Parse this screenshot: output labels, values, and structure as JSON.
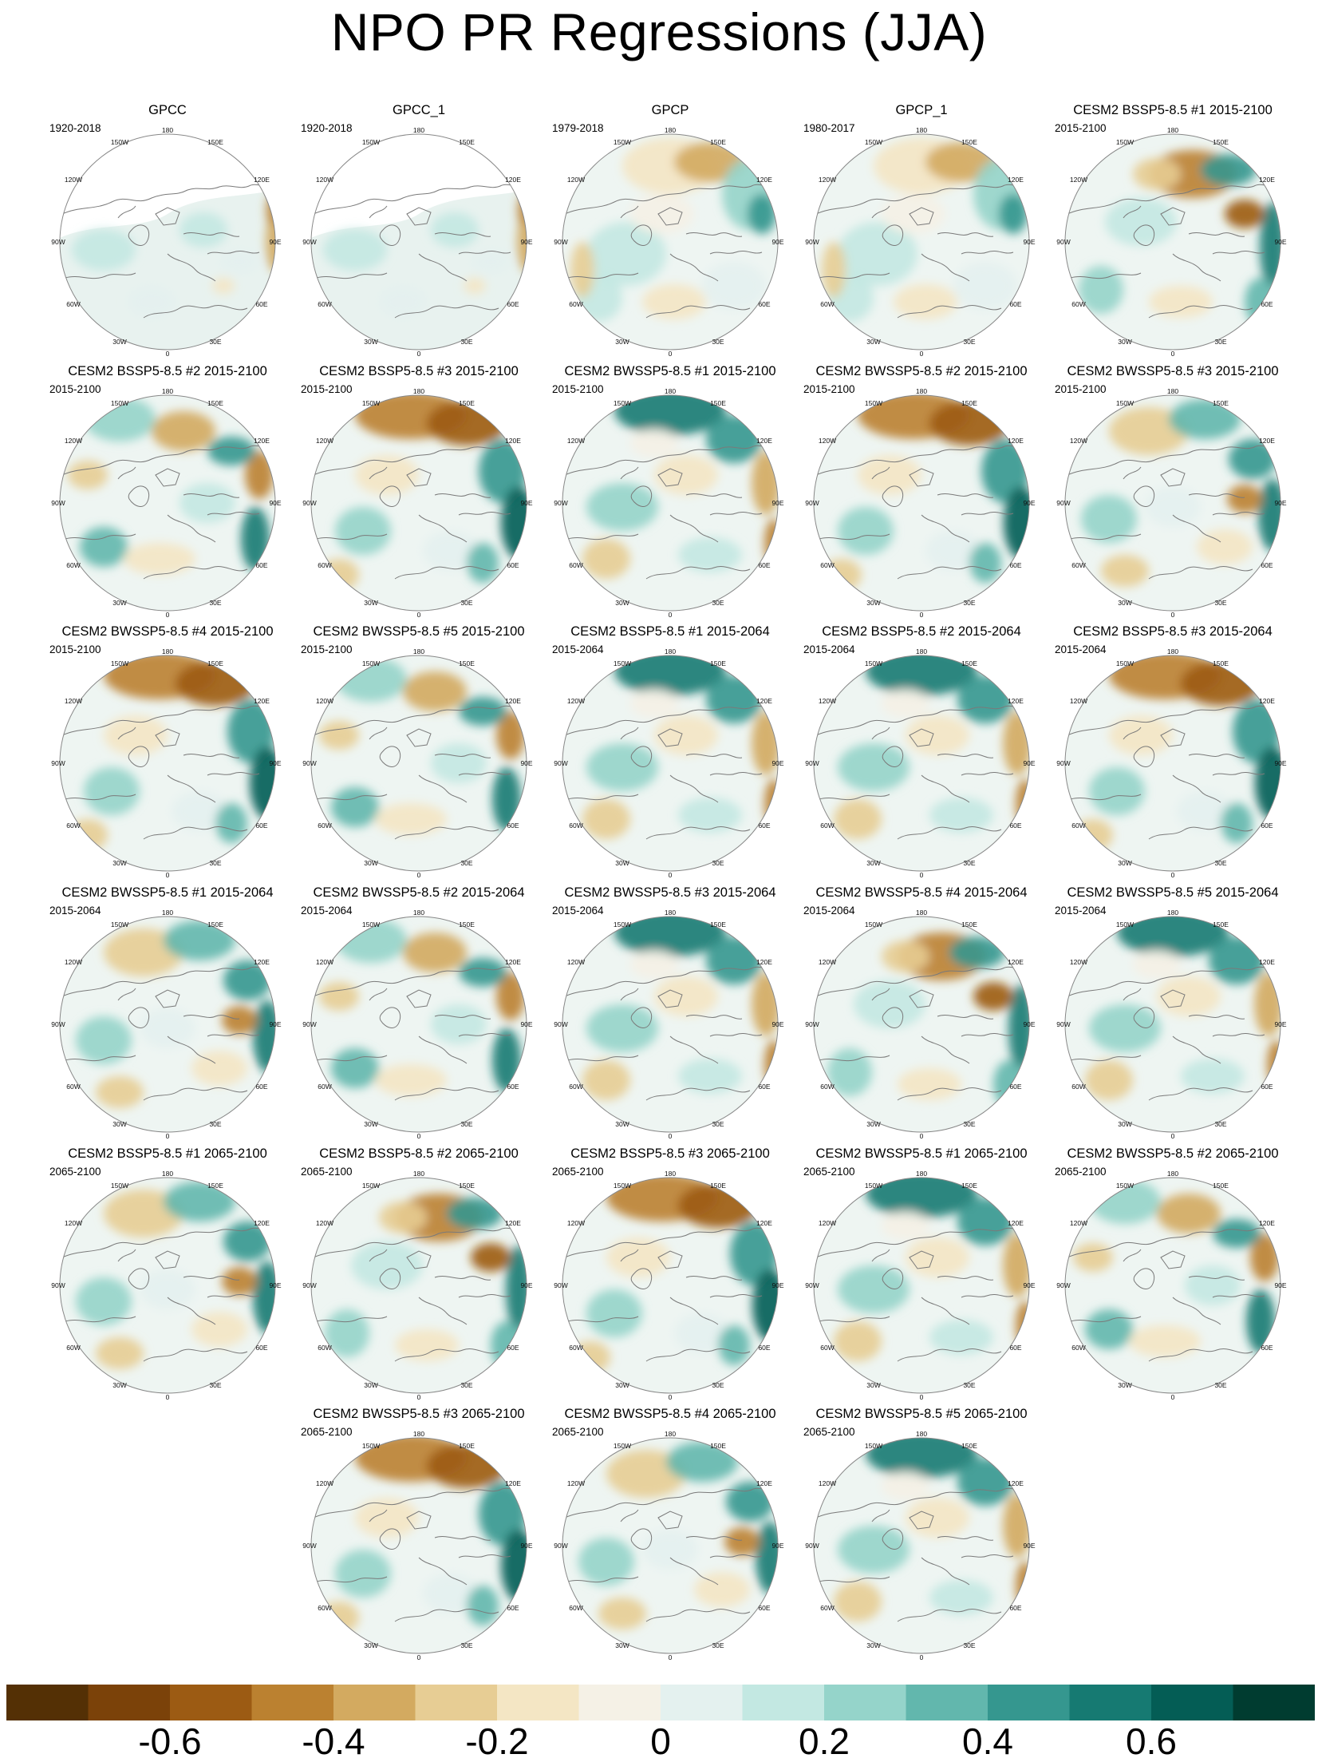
{
  "figure": {
    "title": "NPO PR Regressions (JJA)"
  },
  "panels": [
    {
      "title": "GPCC",
      "period": "1920-2018",
      "pattern": "obs_gpcc"
    },
    {
      "title": "GPCC_1",
      "period": "1920-2018",
      "pattern": "obs_gpcc"
    },
    {
      "title": "GPCP",
      "period": "1979-2018",
      "pattern": "obs_gpcp"
    },
    {
      "title": "GPCP_1",
      "period": "1980-2017",
      "pattern": "obs_gpcp"
    },
    {
      "title": "CESM2 BSSP5-8.5 #1 2015-2100",
      "period": "2015-2100",
      "pattern": "model_a"
    },
    {
      "title": "CESM2 BSSP5-8.5 #2 2015-2100",
      "period": "2015-2100",
      "pattern": "model_b"
    },
    {
      "title": "CESM2 BSSP5-8.5 #3 2015-2100",
      "period": "2015-2100",
      "pattern": "model_c"
    },
    {
      "title": "CESM2 BWSSP5-8.5 #1 2015-2100",
      "period": "2015-2100",
      "pattern": "model_d"
    },
    {
      "title": "CESM2 BWSSP5-8.5 #2 2015-2100",
      "period": "2015-2100",
      "pattern": "model_c"
    },
    {
      "title": "CESM2 BWSSP5-8.5 #3 2015-2100",
      "period": "2015-2100",
      "pattern": "model_e"
    },
    {
      "title": "CESM2 BWSSP5-8.5 #4 2015-2100",
      "period": "2015-2100",
      "pattern": "model_c"
    },
    {
      "title": "CESM2 BWSSP5-8.5 #5 2015-2100",
      "period": "2015-2100",
      "pattern": "model_b"
    },
    {
      "title": "CESM2 BSSP5-8.5 #1 2015-2064",
      "period": "2015-2064",
      "pattern": "model_d"
    },
    {
      "title": "CESM2 BSSP5-8.5 #2 2015-2064",
      "period": "2015-2064",
      "pattern": "model_d"
    },
    {
      "title": "CESM2 BSSP5-8.5 #3 2015-2064",
      "period": "2015-2064",
      "pattern": "model_c"
    },
    {
      "title": "CESM2 BWSSP5-8.5 #1 2015-2064",
      "period": "2015-2064",
      "pattern": "model_e"
    },
    {
      "title": "CESM2 BWSSP5-8.5 #2 2015-2064",
      "period": "2015-2064",
      "pattern": "model_b"
    },
    {
      "title": "CESM2 BWSSP5-8.5 #3 2015-2064",
      "period": "2015-2064",
      "pattern": "model_d"
    },
    {
      "title": "CESM2 BWSSP5-8.5 #4 2015-2064",
      "period": "2015-2064",
      "pattern": "model_a"
    },
    {
      "title": "CESM2 BWSSP5-8.5 #5 2015-2064",
      "period": "2015-2064",
      "pattern": "model_d"
    },
    {
      "title": "CESM2 BSSP5-8.5 #1 2065-2100",
      "period": "2065-2100",
      "pattern": "model_e"
    },
    {
      "title": "CESM2 BSSP5-8.5 #2 2065-2100",
      "period": "2065-2100",
      "pattern": "model_a"
    },
    {
      "title": "CESM2 BSSP5-8.5 #3 2065-2100",
      "period": "2065-2100",
      "pattern": "model_c"
    },
    {
      "title": "CESM2 BWSSP5-8.5 #1 2065-2100",
      "period": "2065-2100",
      "pattern": "model_d"
    },
    {
      "title": "CESM2 BWSSP5-8.5 #2 2065-2100",
      "period": "2065-2100",
      "pattern": "model_b"
    },
    {
      "title": "CESM2 BWSSP5-8.5 #3 2065-2100",
      "period": "2065-2100",
      "pattern": "model_c"
    },
    {
      "title": "CESM2 BWSSP5-8.5 #4 2065-2100",
      "period": "2065-2100",
      "pattern": "model_e"
    },
    {
      "title": "CESM2 BWSSP5-8.5 #5 2065-2100",
      "period": "2065-2100",
      "pattern": "model_d"
    }
  ],
  "grid_labels": [
    "180",
    "150E",
    "120E",
    "90E",
    "60E",
    "30E",
    "0",
    "30W",
    "60W",
    "90W",
    "120W",
    "150W"
  ],
  "colorbar": {
    "colors": [
      "#543005",
      "#7b4209",
      "#9c5b13",
      "#bb8130",
      "#d3aa60",
      "#e7cd94",
      "#f4e6c4",
      "#f5f1e6",
      "#e4f1ef",
      "#c3e8e2",
      "#95d4ca",
      "#62b7ad",
      "#35978f",
      "#167a72",
      "#045d55",
      "#003c30"
    ],
    "tick_labels": [
      "-0.6",
      "-0.4",
      "-0.2",
      "0",
      "0.2",
      "0.4",
      "0.6"
    ],
    "tick_boundaries": [
      2,
      4,
      6,
      8,
      10,
      12,
      14
    ]
  }
}
